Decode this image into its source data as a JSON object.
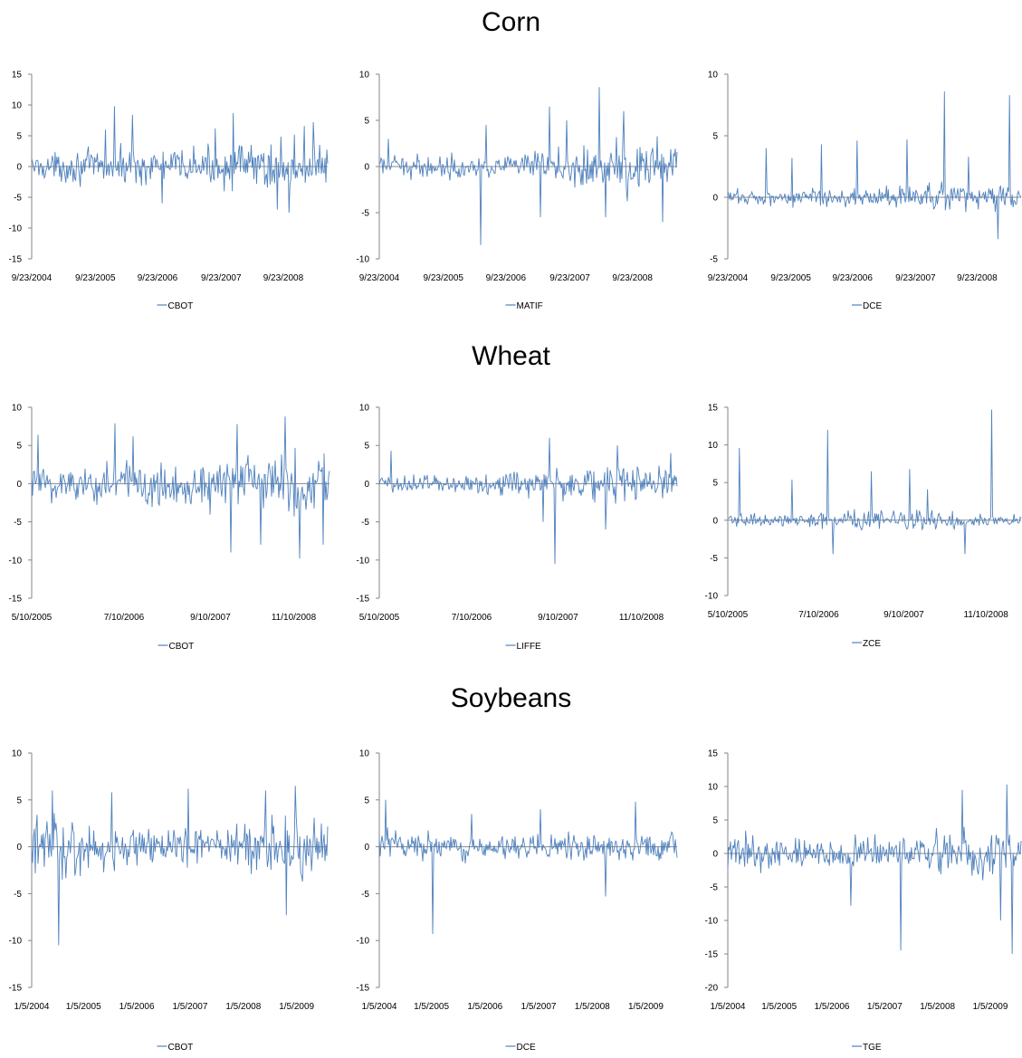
{
  "sections": [
    {
      "title": "Corn"
    },
    {
      "title": "Wheat"
    },
    {
      "title": "Soybeans"
    }
  ],
  "line_color": "#4f81bd",
  "chart_data": [
    {
      "type": "line",
      "section": "Corn",
      "series": [
        {
          "name": "CBOT"
        }
      ],
      "ylim": [
        -15,
        15
      ],
      "yticks": [
        15,
        10,
        5,
        0,
        -5,
        -10,
        -15
      ],
      "xticks": [
        "9/23/2004",
        "9/23/2005",
        "9/23/2006",
        "9/23/2007",
        "9/23/2008"
      ],
      "spikes": [
        [
          0.25,
          6.0
        ],
        [
          0.28,
          9.8
        ],
        [
          0.34,
          8.4
        ],
        [
          0.44,
          -6.0
        ],
        [
          0.62,
          6.2
        ],
        [
          0.68,
          8.7
        ],
        [
          0.83,
          -7.0
        ],
        [
          0.87,
          -7.5
        ],
        [
          0.92,
          6.6
        ],
        [
          0.95,
          7.2
        ]
      ],
      "amp_profile": [
        1.6,
        2.0,
        2.1,
        2.2,
        2.2,
        2.3,
        2.4,
        3.0,
        3.3,
        2.7
      ]
    },
    {
      "type": "line",
      "section": "Corn",
      "series": [
        {
          "name": "MATIF"
        }
      ],
      "ylim": [
        -10,
        10
      ],
      "yticks": [
        10,
        5,
        0,
        -5,
        -10
      ],
      "xticks": [
        "9/23/2004",
        "9/23/2005",
        "9/23/2006",
        "9/23/2007",
        "9/23/2008"
      ],
      "spikes": [
        [
          0.03,
          3.0
        ],
        [
          0.34,
          -8.5
        ],
        [
          0.36,
          4.5
        ],
        [
          0.54,
          -5.5
        ],
        [
          0.57,
          6.5
        ],
        [
          0.63,
          5.0
        ],
        [
          0.74,
          8.6
        ],
        [
          0.76,
          -5.5
        ],
        [
          0.82,
          6.0
        ],
        [
          0.95,
          -6.0
        ]
      ],
      "amp_profile": [
        0.9,
        0.9,
        0.9,
        0.9,
        1.0,
        1.2,
        1.7,
        2.0,
        2.5,
        2.2
      ]
    },
    {
      "type": "line",
      "section": "Corn",
      "series": [
        {
          "name": "DCE"
        }
      ],
      "ylim": [
        -5,
        10
      ],
      "yticks": [
        10,
        5,
        0,
        -5
      ],
      "xticks": [
        "9/23/2004",
        "9/23/2005",
        "9/23/2006",
        "9/23/2007",
        "9/23/2008"
      ],
      "spikes": [
        [
          0.13,
          4.0
        ],
        [
          0.22,
          3.2
        ],
        [
          0.32,
          4.3
        ],
        [
          0.44,
          4.6
        ],
        [
          0.61,
          4.7
        ],
        [
          0.74,
          8.6
        ],
        [
          0.82,
          3.3
        ],
        [
          0.92,
          -3.4
        ],
        [
          0.96,
          8.3
        ]
      ],
      "amp_profile": [
        0.5,
        0.5,
        0.6,
        0.6,
        0.6,
        0.7,
        0.7,
        0.8,
        0.9,
        0.9
      ]
    },
    {
      "type": "line",
      "section": "Wheat",
      "series": [
        {
          "name": "CBOT"
        }
      ],
      "ylim": [
        -15,
        10
      ],
      "yticks": [
        10,
        5,
        0,
        -5,
        -10,
        -15
      ],
      "xticks": [
        "5/10/2005",
        "7/10/2006",
        "9/10/2007",
        "11/10/2008"
      ],
      "spikes": [
        [
          0.02,
          6.4
        ],
        [
          0.28,
          7.9
        ],
        [
          0.34,
          6.2
        ],
        [
          0.67,
          -9.0
        ],
        [
          0.69,
          7.8
        ],
        [
          0.77,
          -8.0
        ],
        [
          0.85,
          8.8
        ],
        [
          0.9,
          -9.8
        ],
        [
          0.98,
          -8.0
        ]
      ],
      "amp_profile": [
        2.0,
        2.0,
        2.2,
        2.4,
        2.5,
        2.7,
        2.8,
        3.3,
        3.2,
        3.1
      ]
    },
    {
      "type": "line",
      "section": "Wheat",
      "series": [
        {
          "name": "LIFFE"
        }
      ],
      "ylim": [
        -15,
        10
      ],
      "yticks": [
        10,
        5,
        0,
        -5,
        -10,
        -15
      ],
      "xticks": [
        "5/10/2005",
        "7/10/2006",
        "9/10/2007",
        "11/10/2008"
      ],
      "spikes": [
        [
          0.04,
          4.3
        ],
        [
          0.55,
          -5.0
        ],
        [
          0.57,
          6.0
        ],
        [
          0.59,
          -10.5
        ],
        [
          0.76,
          -6.0
        ],
        [
          0.8,
          5.0
        ],
        [
          0.98,
          4.0
        ]
      ],
      "amp_profile": [
        0.9,
        1.0,
        1.0,
        1.1,
        1.2,
        1.4,
        1.6,
        1.8,
        1.9,
        1.9
      ]
    },
    {
      "type": "line",
      "section": "Wheat",
      "series": [
        {
          "name": "ZCE"
        }
      ],
      "ylim": [
        -10,
        15
      ],
      "yticks": [
        15,
        10,
        5,
        0,
        -5,
        -10
      ],
      "xticks": [
        "5/10/2005",
        "7/10/2006",
        "9/10/2007",
        "11/10/2008"
      ],
      "spikes": [
        [
          0.04,
          9.6
        ],
        [
          0.22,
          5.4
        ],
        [
          0.34,
          12.0
        ],
        [
          0.36,
          -4.5
        ],
        [
          0.49,
          6.5
        ],
        [
          0.62,
          6.8
        ],
        [
          0.68,
          4.1
        ],
        [
          0.81,
          -4.5
        ],
        [
          0.9,
          14.7
        ]
      ],
      "amp_profile": [
        0.6,
        0.6,
        0.7,
        0.9,
        1.0,
        1.0,
        1.0,
        0.9,
        0.6,
        0.6
      ]
    },
    {
      "type": "line",
      "section": "Soybeans",
      "series": [
        {
          "name": "CBOT"
        }
      ],
      "ylim": [
        -15,
        10
      ],
      "yticks": [
        10,
        5,
        0,
        -5,
        -10,
        -15
      ],
      "xticks": [
        "1/5/2004",
        "1/5/2005",
        "1/5/2006",
        "1/5/2007",
        "1/5/2008",
        "1/5/2009"
      ],
      "spikes": [
        [
          0.07,
          6.0
        ],
        [
          0.09,
          -10.5
        ],
        [
          0.27,
          5.8
        ],
        [
          0.53,
          6.2
        ],
        [
          0.79,
          6.0
        ],
        [
          0.86,
          -7.3
        ],
        [
          0.89,
          6.5
        ]
      ],
      "amp_profile": [
        2.2,
        2.6,
        1.8,
        1.6,
        1.5,
        1.5,
        1.6,
        2.2,
        2.8,
        2.4
      ]
    },
    {
      "type": "line",
      "section": "Soybeans",
      "series": [
        {
          "name": "DCE"
        }
      ],
      "ylim": [
        -15,
        10
      ],
      "yticks": [
        10,
        5,
        0,
        -5,
        -10,
        -15
      ],
      "xticks": [
        "1/5/2004",
        "1/5/2005",
        "1/5/2006",
        "1/5/2007",
        "1/5/2008",
        "1/5/2009"
      ],
      "spikes": [
        [
          0.02,
          5.0
        ],
        [
          0.18,
          -9.3
        ],
        [
          0.31,
          3.5
        ],
        [
          0.54,
          4.0
        ],
        [
          0.76,
          -5.3
        ],
        [
          0.86,
          4.8
        ]
      ],
      "amp_profile": [
        1.3,
        1.1,
        1.0,
        0.9,
        0.9,
        1.0,
        1.0,
        1.0,
        1.1,
        1.1
      ]
    },
    {
      "type": "line",
      "section": "Soybeans",
      "series": [
        {
          "name": "TGE"
        }
      ],
      "ylim": [
        -20,
        15
      ],
      "yticks": [
        15,
        10,
        5,
        0,
        -5,
        -10,
        -15,
        -20
      ],
      "xticks": [
        "1/5/2004",
        "1/5/2005",
        "1/5/2006",
        "1/5/2007",
        "1/5/2008",
        "1/5/2009"
      ],
      "spikes": [
        [
          0.42,
          -7.8
        ],
        [
          0.59,
          -14.5
        ],
        [
          0.8,
          9.5
        ],
        [
          0.93,
          -10.0
        ],
        [
          0.95,
          10.3
        ],
        [
          0.97,
          -15.0
        ]
      ],
      "amp_profile": [
        2.0,
        1.9,
        1.8,
        1.8,
        1.7,
        1.8,
        2.0,
        2.3,
        3.0,
        2.6
      ]
    }
  ]
}
